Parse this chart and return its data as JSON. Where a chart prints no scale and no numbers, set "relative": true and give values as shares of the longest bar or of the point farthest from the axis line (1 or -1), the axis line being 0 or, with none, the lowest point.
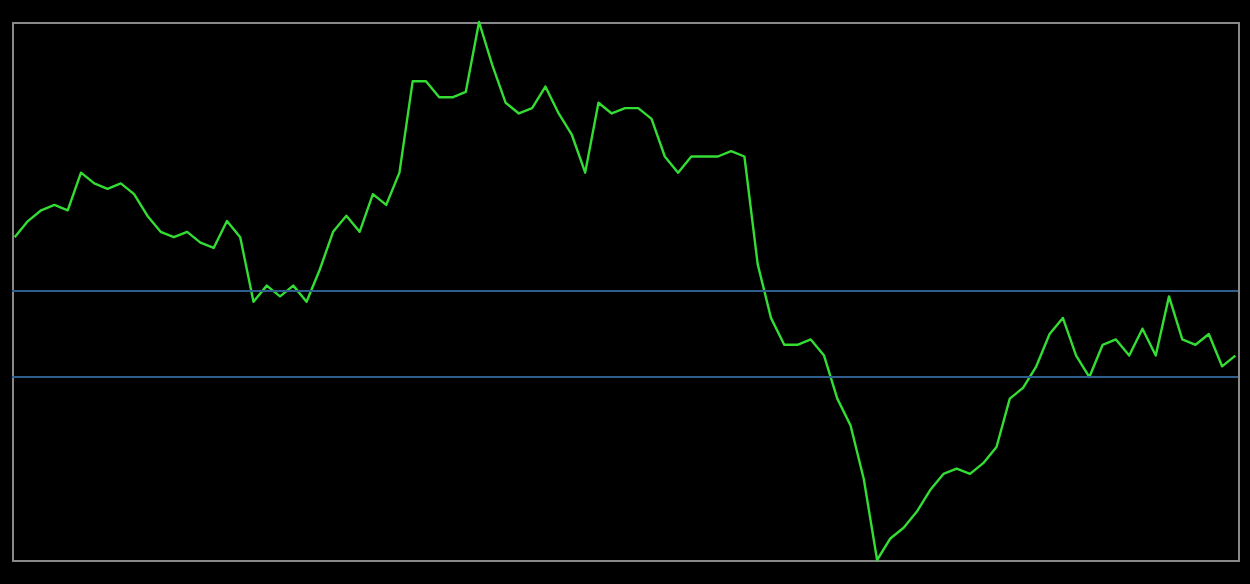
{
  "chart_data": {
    "type": "line",
    "relative": true,
    "categories": [
      null,
      null,
      null,
      null,
      null,
      null,
      null,
      null,
      null,
      null,
      null,
      null,
      null,
      null,
      null,
      null,
      null,
      null,
      null,
      null,
      null,
      null,
      null,
      null,
      null,
      null,
      null,
      null,
      null,
      null,
      null,
      null,
      null,
      null,
      null,
      null,
      null,
      null,
      null,
      null,
      null,
      null,
      null,
      null,
      null,
      null,
      null,
      null,
      null,
      null,
      null,
      null,
      null,
      null,
      null,
      null,
      null,
      null,
      null,
      null,
      null,
      null,
      null,
      null,
      null,
      null,
      null,
      null,
      null,
      null,
      null,
      null,
      null,
      null,
      null,
      null,
      null,
      null,
      null,
      null,
      null,
      null,
      null,
      null,
      null,
      null,
      null,
      null,
      null,
      null,
      null,
      null,
      null
    ],
    "series": [
      {
        "color": "#33dd33",
        "values": [
          0.6,
          0.63,
          0.65,
          0.66,
          0.65,
          0.72,
          0.7,
          0.69,
          0.7,
          0.68,
          0.64,
          0.61,
          0.6,
          0.61,
          0.59,
          0.58,
          0.63,
          0.6,
          0.48,
          0.51,
          0.49,
          0.51,
          0.48,
          0.54,
          0.61,
          0.64,
          0.61,
          0.68,
          0.66,
          0.72,
          0.89,
          0.89,
          0.86,
          0.86,
          0.87,
          1,
          0.92,
          0.85,
          0.83,
          0.84,
          0.88,
          0.83,
          0.79,
          0.72,
          0.85,
          0.83,
          0.84,
          0.84,
          0.82,
          0.75,
          0.72,
          0.75,
          0.75,
          0.75,
          0.76,
          0.75,
          0.55,
          0.45,
          0.4,
          0.4,
          0.41,
          0.38,
          0.3,
          0.25,
          0.15,
          0,
          0.04,
          0.06,
          0.09,
          0.13,
          0.16,
          0.17,
          0.16,
          0.18,
          0.21,
          0.3,
          0.32,
          0.36,
          0.42,
          0.45,
          0.38,
          0.34,
          0.4,
          0.41,
          0.38,
          0.43,
          0.38,
          0.49,
          0.41,
          0.4,
          0.42,
          0.36,
          0.38
        ]
      }
    ],
    "ref_lines": [
      {
        "axis": "y",
        "value": 0.5,
        "color": "#2f5f8f"
      },
      {
        "axis": "y",
        "value": 0.34,
        "color": "#2f5f8f"
      }
    ],
    "grid": false
  }
}
